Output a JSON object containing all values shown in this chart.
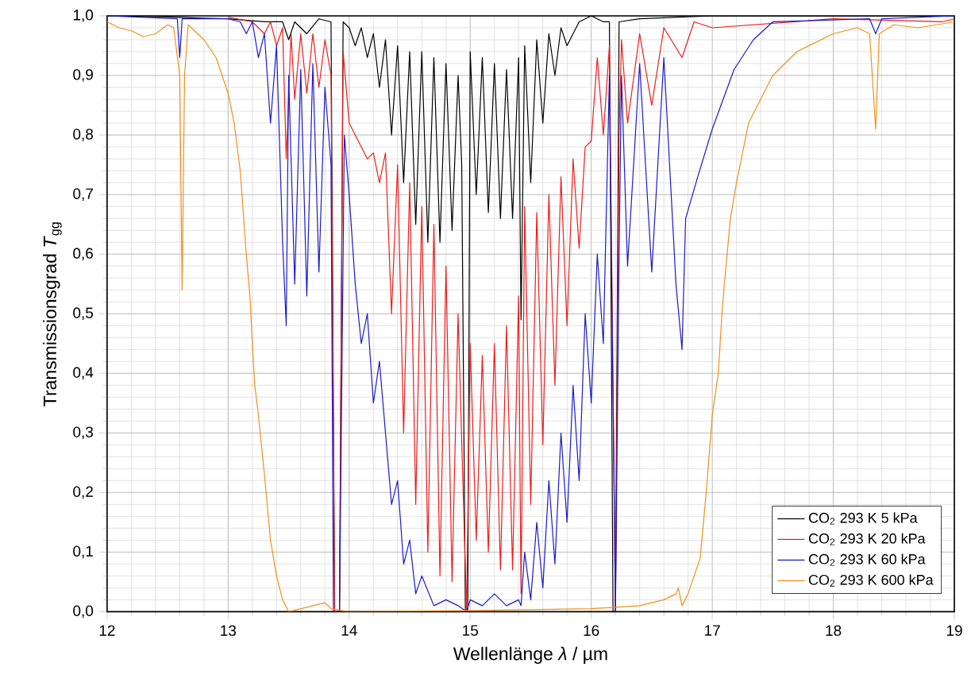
{
  "chart_data": {
    "type": "line",
    "xlabel": "Wellenlänge *λ* / µm",
    "ylabel": "Transmissionsgrad *T*$_{gg}$",
    "xlim": [
      12,
      19
    ],
    "ylim": [
      0,
      1
    ],
    "xticks": [
      12,
      13,
      14,
      15,
      16,
      17,
      18,
      19
    ],
    "yticks": [
      {
        "value": 0,
        "label": "0,0"
      },
      {
        "value": 0.1,
        "label": "0,1"
      },
      {
        "value": 0.2,
        "label": "0,2"
      },
      {
        "value": 0.3,
        "label": "0,3"
      },
      {
        "value": 0.4,
        "label": "0,4"
      },
      {
        "value": 0.5,
        "label": "0,5"
      },
      {
        "value": 0.6,
        "label": "0,6"
      },
      {
        "value": 0.7,
        "label": "0,7"
      },
      {
        "value": 0.8,
        "label": "0,8"
      },
      {
        "value": 0.9,
        "label": "0,9"
      },
      {
        "value": 1,
        "label": "1,0"
      }
    ],
    "grid": true,
    "legend": "bottom right",
    "line_style": "solid",
    "series": [
      {
        "name": "CO$_{2}$ 293 K 5 kPa",
        "color": "#000000",
        "x": [
          12.0,
          12.5,
          13.0,
          13.3,
          13.45,
          13.5,
          13.55,
          13.65,
          13.75,
          13.85,
          13.88,
          13.92,
          13.95,
          14.0,
          14.05,
          14.1,
          14.15,
          14.2,
          14.25,
          14.3,
          14.35,
          14.4,
          14.45,
          14.5,
          14.55,
          14.6,
          14.65,
          14.7,
          14.75,
          14.8,
          14.85,
          14.9,
          14.93,
          14.96,
          14.98,
          15.0,
          15.05,
          15.1,
          15.15,
          15.2,
          15.25,
          15.3,
          15.35,
          15.4,
          15.42,
          15.45,
          15.5,
          15.55,
          15.6,
          15.65,
          15.7,
          15.75,
          15.8,
          15.9,
          16.0,
          16.1,
          16.15,
          16.18,
          16.2,
          16.23,
          16.4,
          17.0,
          19.0
        ],
        "values": [
          1.0,
          0.998,
          0.995,
          0.99,
          0.99,
          0.96,
          0.99,
          0.97,
          0.995,
          0.99,
          0.0,
          0.0,
          0.99,
          0.98,
          0.95,
          0.98,
          0.93,
          0.97,
          0.88,
          0.96,
          0.8,
          0.95,
          0.72,
          0.94,
          0.65,
          0.94,
          0.62,
          0.93,
          0.62,
          0.92,
          0.64,
          0.9,
          0.75,
          0.0,
          0.0,
          0.94,
          0.7,
          0.93,
          0.67,
          0.92,
          0.66,
          0.91,
          0.66,
          0.93,
          0.49,
          0.95,
          0.72,
          0.96,
          0.82,
          0.97,
          0.9,
          0.98,
          0.95,
          0.99,
          1.0,
          0.99,
          0.99,
          0.0,
          0.0,
          0.99,
          0.995,
          1.0,
          1.0
        ]
      },
      {
        "name": "CO$_{2}$ 293 K 20 kPa",
        "color": "#ee1c1c",
        "x": [
          13.0,
          13.2,
          13.3,
          13.35,
          13.4,
          13.45,
          13.48,
          13.52,
          13.55,
          13.6,
          13.65,
          13.7,
          13.75,
          13.8,
          13.85,
          13.88,
          13.92,
          13.95,
          14.0,
          14.05,
          14.1,
          14.15,
          14.2,
          14.25,
          14.3,
          14.35,
          14.4,
          14.45,
          14.5,
          14.55,
          14.6,
          14.65,
          14.7,
          14.75,
          14.8,
          14.85,
          14.9,
          14.97,
          15.0,
          15.05,
          15.1,
          15.15,
          15.2,
          15.25,
          15.3,
          15.35,
          15.4,
          15.42,
          15.45,
          15.5,
          15.55,
          15.6,
          15.65,
          15.7,
          15.75,
          15.8,
          15.85,
          15.9,
          15.95,
          16.0,
          16.05,
          16.1,
          16.15,
          16.2,
          16.23,
          16.25,
          16.3,
          16.4,
          16.5,
          16.6,
          16.75,
          16.85,
          17.0,
          18.0,
          18.9,
          19.0
        ],
        "values": [
          0.998,
          0.99,
          0.97,
          0.99,
          0.95,
          0.98,
          0.76,
          0.97,
          0.86,
          0.97,
          0.87,
          0.97,
          0.88,
          0.96,
          0.9,
          0.0,
          0.0,
          0.94,
          0.82,
          0.8,
          0.78,
          0.76,
          0.77,
          0.72,
          0.77,
          0.5,
          0.75,
          0.3,
          0.72,
          0.18,
          0.68,
          0.1,
          0.65,
          0.06,
          0.58,
          0.05,
          0.5,
          0.0,
          0.45,
          0.12,
          0.43,
          0.1,
          0.45,
          0.07,
          0.48,
          0.07,
          0.53,
          0.03,
          0.68,
          0.18,
          0.67,
          0.28,
          0.7,
          0.38,
          0.73,
          0.48,
          0.76,
          0.61,
          0.78,
          0.79,
          0.93,
          0.8,
          0.95,
          0.0,
          0.8,
          0.96,
          0.82,
          0.97,
          0.85,
          0.98,
          0.93,
          0.99,
          0.98,
          0.995,
          0.99,
          0.995
        ]
      },
      {
        "name": "CO$_{2}$ 293 K 60 kPa",
        "color": "#1a1acc",
        "x": [
          12.0,
          12.58,
          12.6,
          12.62,
          13.0,
          13.1,
          13.15,
          13.2,
          13.25,
          13.3,
          13.35,
          13.4,
          13.45,
          13.48,
          13.5,
          13.55,
          13.6,
          13.65,
          13.7,
          13.75,
          13.8,
          13.85,
          13.87,
          13.92,
          13.96,
          14.0,
          14.05,
          14.1,
          14.15,
          14.2,
          14.25,
          14.3,
          14.35,
          14.4,
          14.45,
          14.5,
          14.55,
          14.6,
          14.7,
          14.8,
          14.9,
          14.97,
          15.0,
          15.1,
          15.2,
          15.3,
          15.4,
          15.42,
          15.45,
          15.5,
          15.55,
          15.6,
          15.65,
          15.7,
          15.75,
          15.8,
          15.85,
          15.9,
          15.95,
          16.0,
          16.05,
          16.1,
          16.15,
          16.2,
          16.23,
          16.25,
          16.3,
          16.4,
          16.5,
          16.6,
          16.7,
          16.75,
          16.78,
          16.88,
          17.0,
          17.18,
          17.34,
          17.5,
          18.3,
          18.35,
          18.4,
          19.0
        ],
        "values": [
          1.0,
          0.995,
          0.93,
          0.995,
          0.995,
          0.99,
          0.97,
          0.99,
          0.93,
          0.97,
          0.82,
          0.95,
          0.62,
          0.48,
          0.9,
          0.55,
          0.91,
          0.53,
          0.92,
          0.57,
          0.88,
          0.75,
          0.0,
          0.0,
          0.8,
          0.7,
          0.55,
          0.45,
          0.5,
          0.35,
          0.42,
          0.3,
          0.18,
          0.22,
          0.08,
          0.12,
          0.03,
          0.06,
          0.01,
          0.02,
          0.01,
          0.0,
          0.02,
          0.01,
          0.03,
          0.01,
          0.02,
          0.01,
          0.1,
          0.02,
          0.15,
          0.04,
          0.22,
          0.08,
          0.3,
          0.15,
          0.38,
          0.22,
          0.5,
          0.35,
          0.6,
          0.45,
          0.9,
          0.0,
          0.6,
          0.9,
          0.58,
          0.92,
          0.57,
          0.93,
          0.55,
          0.44,
          0.66,
          0.73,
          0.81,
          0.91,
          0.96,
          0.99,
          0.995,
          0.97,
          0.995,
          1.0
        ]
      },
      {
        "name": "CO$_{2}$ 293 K 600 kPa",
        "color": "#f0901a",
        "x": [
          12.0,
          12.05,
          12.1,
          12.2,
          12.3,
          12.4,
          12.5,
          12.55,
          12.6,
          12.62,
          12.64,
          12.67,
          12.8,
          12.9,
          13.0,
          13.05,
          13.1,
          13.15,
          13.18,
          13.2,
          13.22,
          13.25,
          13.3,
          13.35,
          13.4,
          13.45,
          13.5,
          13.6,
          13.8,
          13.85,
          14.0,
          15.0,
          16.0,
          16.4,
          16.6,
          16.7,
          16.72,
          16.75,
          16.8,
          16.9,
          16.95,
          17.0,
          17.05,
          17.08,
          17.1,
          17.15,
          17.2,
          17.25,
          17.3,
          17.4,
          17.5,
          17.7,
          18.0,
          18.2,
          18.3,
          18.35,
          18.38,
          18.5,
          18.7,
          19.0
        ],
        "values": [
          0.99,
          0.985,
          0.98,
          0.975,
          0.965,
          0.97,
          0.985,
          0.98,
          0.9,
          0.54,
          0.9,
          0.985,
          0.96,
          0.93,
          0.87,
          0.82,
          0.74,
          0.6,
          0.53,
          0.45,
          0.38,
          0.33,
          0.23,
          0.12,
          0.06,
          0.02,
          0.0,
          0.005,
          0.015,
          0.005,
          0.0,
          0.002,
          0.005,
          0.01,
          0.02,
          0.03,
          0.04,
          0.01,
          0.03,
          0.09,
          0.2,
          0.33,
          0.4,
          0.5,
          0.55,
          0.66,
          0.72,
          0.77,
          0.82,
          0.86,
          0.9,
          0.94,
          0.97,
          0.98,
          0.97,
          0.81,
          0.97,
          0.985,
          0.98,
          0.99
        ]
      }
    ]
  }
}
